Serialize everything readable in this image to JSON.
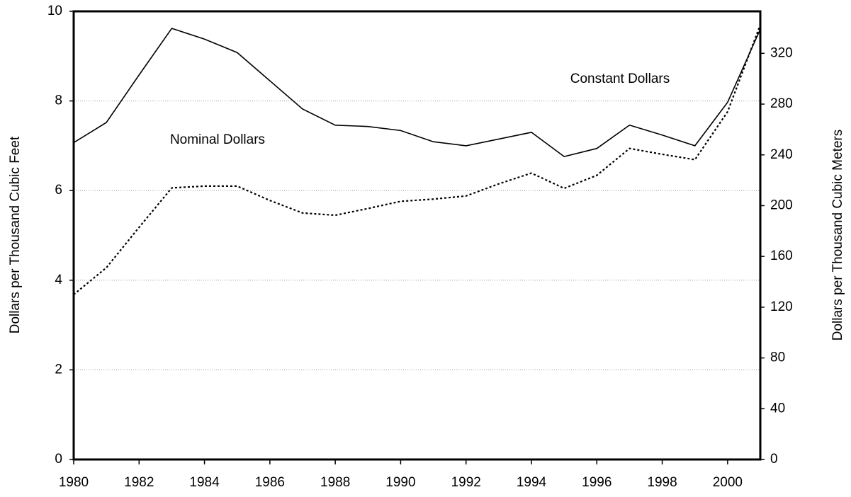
{
  "chart_data": {
    "type": "line",
    "x": [
      1980,
      1981,
      1982,
      1983,
      1984,
      1985,
      1986,
      1987,
      1988,
      1989,
      1990,
      1991,
      1992,
      1993,
      1994,
      1995,
      1996,
      1997,
      1998,
      1999,
      2000,
      2001
    ],
    "series": [
      {
        "name": "Constant Dollars",
        "color": "#000000",
        "dash": "solid",
        "values": [
          7.07,
          7.52,
          8.58,
          9.62,
          9.38,
          9.08,
          8.45,
          7.82,
          7.46,
          7.43,
          7.34,
          7.09,
          7.0,
          7.15,
          7.3,
          6.76,
          6.94,
          7.46,
          7.24,
          7.0,
          7.97,
          9.6
        ]
      },
      {
        "name": "Nominal Dollars",
        "color": "#000000",
        "dash": "dotted",
        "values": [
          3.68,
          4.28,
          5.18,
          6.06,
          6.1,
          6.1,
          5.78,
          5.5,
          5.45,
          5.6,
          5.76,
          5.81,
          5.88,
          6.15,
          6.39,
          6.05,
          6.34,
          6.94,
          6.81,
          6.69,
          7.76,
          9.7
        ]
      }
    ],
    "y_label": "Dollars per Thousand Cubic Feet",
    "y2_label": "Dollars per Thousand Cubic Meters",
    "xlim": [
      1980,
      2001
    ],
    "xticks": [
      1980,
      1982,
      1984,
      1986,
      1988,
      1990,
      1992,
      1994,
      1996,
      1998,
      2000
    ],
    "ylim": [
      0,
      10
    ],
    "yticks": [
      0,
      2,
      4,
      6,
      8,
      10
    ],
    "y2lim": [
      0,
      353.1
    ],
    "y2ticks": [
      0,
      40,
      80,
      120,
      160,
      200,
      240,
      280,
      320
    ],
    "grid": true
  }
}
